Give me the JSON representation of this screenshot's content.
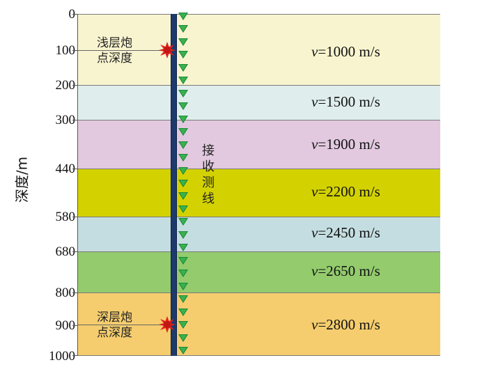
{
  "diagram": {
    "y_axis_label": "深度/m",
    "depth_ticks": [
      "0",
      "100",
      "200",
      "300",
      "440",
      "580",
      "680",
      "800",
      "900",
      "1000"
    ],
    "layers": [
      {
        "v_symbol": "v",
        "v_value": "=1000 m/s",
        "color": "#f8f4cf"
      },
      {
        "v_symbol": "v",
        "v_value": "=1500 m/s",
        "color": "#dfeeed"
      },
      {
        "v_symbol": "v",
        "v_value": "=1900 m/s",
        "color": "#e2c9df"
      },
      {
        "v_symbol": "v",
        "v_value": "=2200 m/s",
        "color": "#d3d200"
      },
      {
        "v_symbol": "v",
        "v_value": "=2450 m/s",
        "color": "#c4dde0"
      },
      {
        "v_symbol": "v",
        "v_value": "=2650 m/s",
        "color": "#93cb6d"
      },
      {
        "v_symbol": "v",
        "v_value": "=2800 m/s",
        "color": "#f5cd6e"
      }
    ],
    "receiver_line_label": "接收测线",
    "receiver_line_chars": [
      "接",
      "收",
      "测",
      "线"
    ],
    "shallow_shot": {
      "line1": "浅层炮",
      "line2": "点深度"
    },
    "deep_shot": {
      "line1": "深层炮",
      "line2": "点深度"
    },
    "borehole_color": "#1d3a6e",
    "receiver_color": "#3bb14d",
    "shot_color": "#e0201c"
  }
}
